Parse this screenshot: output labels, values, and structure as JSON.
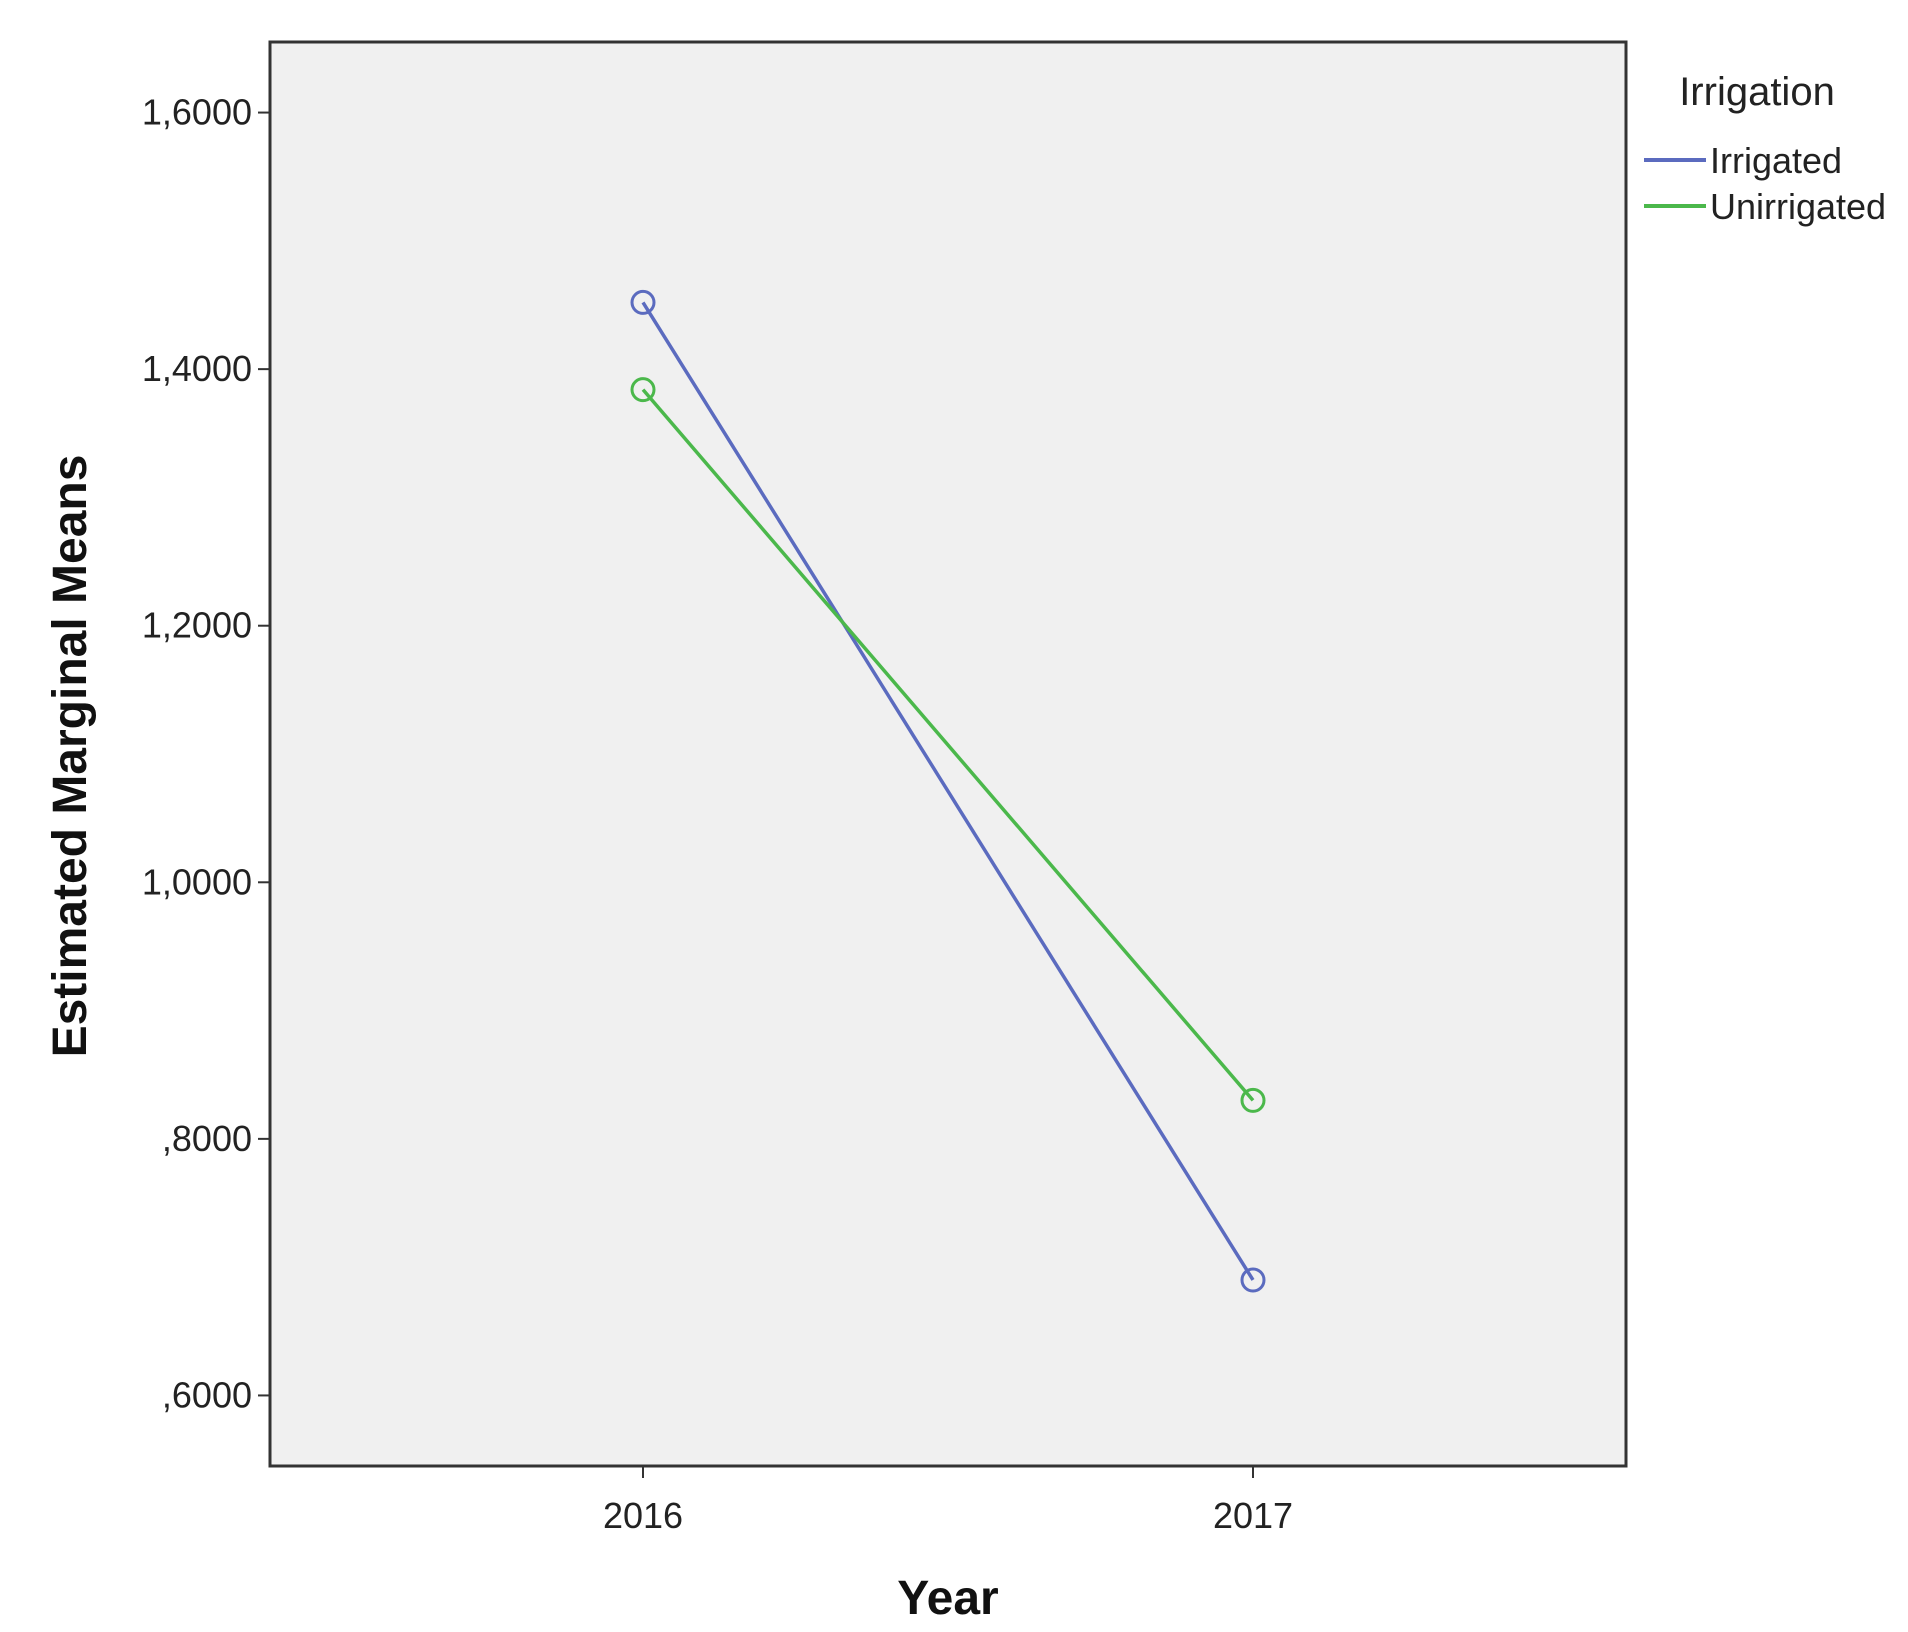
{
  "chart_data": {
    "type": "line",
    "title": "",
    "xlabel": "Year",
    "ylabel": "Estimated Marginal Means",
    "categories": [
      "2016",
      "2017"
    ],
    "ylim": [
      0.545,
      1.655
    ],
    "yticks": [
      0.6,
      0.8,
      1.0,
      1.2,
      1.4,
      1.6
    ],
    "ytick_labels": [
      ",6000",
      ",8000",
      "1,0000",
      "1,2000",
      "1,4000",
      "1,6000"
    ],
    "grid": false,
    "legend": {
      "title": "Irrigation",
      "position": "top-right-outside"
    },
    "series": [
      {
        "name": "Irrigated",
        "color": "#5b6bbf",
        "values": [
          1.452,
          0.69
        ]
      },
      {
        "name": "Unirrigated",
        "color": "#4bb84b",
        "values": [
          1.384,
          0.83
        ]
      }
    ],
    "plot_background": "#f0f0f0",
    "marker": "open-circle"
  }
}
